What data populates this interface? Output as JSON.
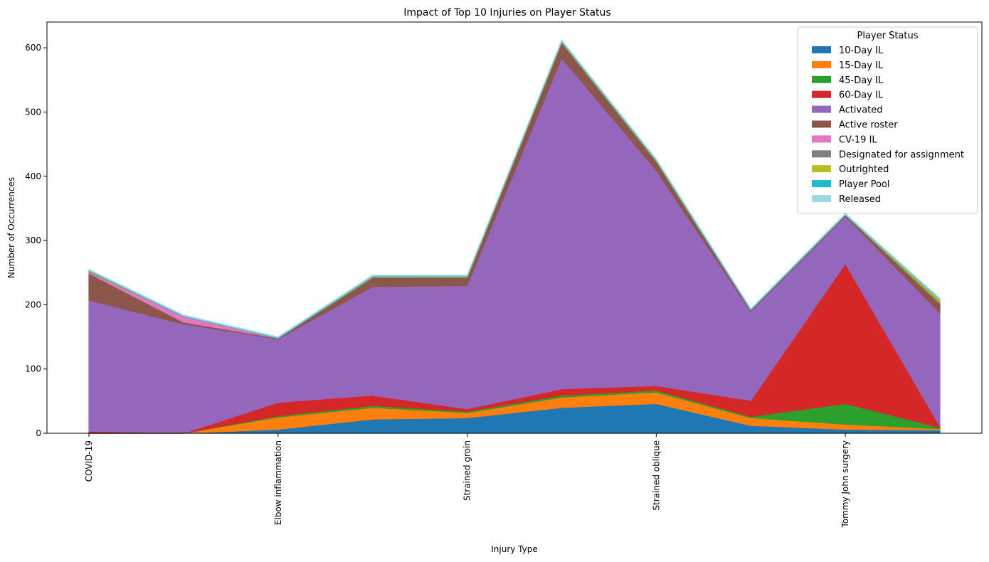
{
  "chart_data": {
    "type": "area",
    "stacked": true,
    "title": "Impact of Top 10 Injuries on Player Status",
    "xlabel": "Injury Type",
    "ylabel": "Number of Occurrences",
    "ylim": [
      0,
      640
    ],
    "yticks": [
      0,
      100,
      200,
      300,
      400,
      500,
      600
    ],
    "grid": false,
    "legend_title": "Player Status",
    "legend_position": "top-right",
    "xtick_labels": [
      "COVID-19",
      "Elbow inflammation",
      "Strained groin",
      "Strained oblique",
      "Tommy John surgery"
    ],
    "xtick_positions": [
      0,
      2,
      4,
      6,
      8
    ],
    "x": [
      0,
      1,
      2,
      3,
      4,
      5,
      6,
      7,
      8,
      9
    ],
    "series": [
      {
        "name": "10-Day IL",
        "color": "#1f77b4",
        "values": [
          0,
          0,
          6,
          22,
          24,
          40,
          46,
          12,
          6,
          5
        ]
      },
      {
        "name": "15-Day IL",
        "color": "#ff7f0e",
        "values": [
          0,
          0,
          19,
          18,
          8,
          16,
          18,
          12,
          8,
          2
        ]
      },
      {
        "name": "45-Day IL",
        "color": "#2ca02c",
        "values": [
          0,
          0,
          2,
          3,
          2,
          3,
          3,
          2,
          32,
          2
        ]
      },
      {
        "name": "60-Day IL",
        "color": "#d62728",
        "values": [
          3,
          0,
          21,
          16,
          4,
          10,
          7,
          25,
          218,
          2
        ]
      },
      {
        "name": "Activated",
        "color": "#9467bd",
        "values": [
          204,
          170,
          99,
          169,
          192,
          515,
          335,
          139,
          74,
          176
        ]
      },
      {
        "name": "Active roster",
        "color": "#8c564b",
        "values": [
          42,
          3,
          1,
          14,
          12,
          24,
          14,
          2,
          2,
          14
        ]
      },
      {
        "name": "CV-19 IL",
        "color": "#e377c2",
        "values": [
          2,
          9,
          0,
          0,
          0,
          0,
          0,
          0,
          0,
          0
        ]
      },
      {
        "name": "Designated for assignment",
        "color": "#7f7f7f",
        "values": [
          1,
          0,
          0,
          1,
          1,
          1,
          1,
          0,
          0,
          3
        ]
      },
      {
        "name": "Outrighted",
        "color": "#bcbd22",
        "values": [
          1,
          0,
          0,
          1,
          1,
          1,
          1,
          0,
          0,
          4
        ]
      },
      {
        "name": "Player Pool",
        "color": "#17becf",
        "values": [
          1,
          1,
          1,
          1,
          1,
          1,
          1,
          1,
          1,
          1
        ]
      },
      {
        "name": "Released",
        "color": "#9edae5",
        "values": [
          1,
          1,
          1,
          1,
          1,
          1,
          1,
          1,
          1,
          1
        ]
      }
    ]
  }
}
